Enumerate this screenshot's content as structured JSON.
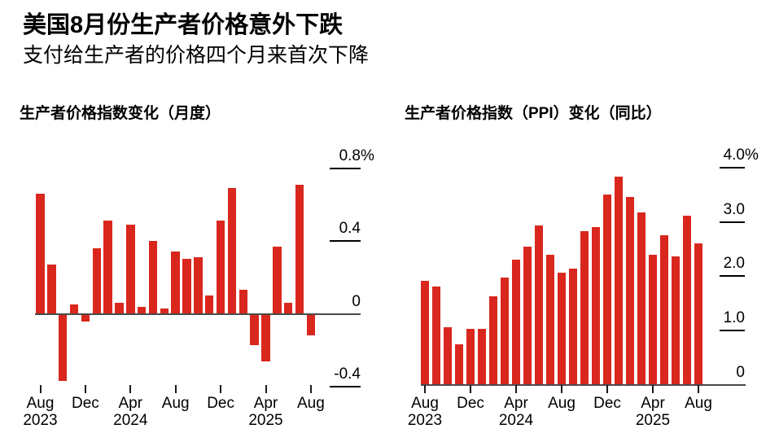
{
  "header": {
    "title": "美国8月份生产者价格意外下跌",
    "subtitle": "支付给生产者的价格四个月来首次下降"
  },
  "accent_color": "#d9271e",
  "chart_data": [
    {
      "type": "bar",
      "title": "生产者价格指数变化（月度）",
      "xlabel": "",
      "ylabel": "percent change month-over-month",
      "unit": "%",
      "ylim": [
        -0.4,
        0.8
      ],
      "grid": false,
      "legend": "none",
      "bar_color": "#d9271e",
      "categories": [
        "Aug 2023",
        "Sep 2023",
        "Oct 2023",
        "Nov 2023",
        "Dec 2023",
        "Jan 2024",
        "Feb 2024",
        "Mar 2024",
        "Apr 2024",
        "May 2024",
        "Jun 2024",
        "Jul 2024",
        "Aug 2024",
        "Sep 2024",
        "Oct 2024",
        "Nov 2024",
        "Dec 2024",
        "Jan 2025",
        "Feb 2025",
        "Mar 2025",
        "Apr 2025",
        "May 2025",
        "Jun 2025",
        "Jul 2025",
        "Aug 2025"
      ],
      "values": [
        0.66,
        0.27,
        -0.37,
        0.05,
        -0.04,
        0.36,
        0.51,
        0.06,
        0.49,
        0.04,
        0.4,
        0.03,
        0.34,
        0.3,
        0.31,
        0.1,
        0.51,
        0.69,
        0.13,
        -0.17,
        -0.26,
        0.37,
        0.06,
        0.71,
        -0.12
      ],
      "y_ticks": [
        {
          "label": "0.8",
          "suffix": "%",
          "value": 0.8
        },
        {
          "label": "0.4",
          "suffix": "",
          "value": 0.4
        },
        {
          "label": "0",
          "suffix": "",
          "value": 0
        },
        {
          "label": "-0.4",
          "suffix": "",
          "value": -0.4
        }
      ],
      "x_ticks": [
        {
          "index": 0,
          "month": "Aug",
          "year": "2023"
        },
        {
          "index": 4,
          "month": "Dec",
          "year": ""
        },
        {
          "index": 8,
          "month": "Apr",
          "year": "2024"
        },
        {
          "index": 12,
          "month": "Aug",
          "year": ""
        },
        {
          "index": 16,
          "month": "Dec",
          "year": ""
        },
        {
          "index": 20,
          "month": "Apr",
          "year": "2025"
        },
        {
          "index": 24,
          "month": "Aug",
          "year": ""
        }
      ]
    },
    {
      "type": "bar",
      "title": "生产者价格指数（PPI）变化（同比）",
      "xlabel": "",
      "ylabel": "percent change year-over-year",
      "unit": "%",
      "ylim": [
        0,
        4.0
      ],
      "grid": false,
      "legend": "none",
      "bar_color": "#d9271e",
      "categories": [
        "Aug 2023",
        "Sep 2023",
        "Oct 2023",
        "Nov 2023",
        "Dec 2023",
        "Jan 2024",
        "Feb 2024",
        "Mar 2024",
        "Apr 2024",
        "May 2024",
        "Jun 2024",
        "Jul 2024",
        "Aug 2024",
        "Sep 2024",
        "Oct 2024",
        "Nov 2024",
        "Dec 2024",
        "Jan 2025",
        "Feb 2025",
        "Mar 2025",
        "Apr 2025",
        "May 2025",
        "Jun 2025",
        "Jul 2025",
        "Aug 2025"
      ],
      "values": [
        1.91,
        1.81,
        1.07,
        0.75,
        1.04,
        1.03,
        1.63,
        1.98,
        2.31,
        2.55,
        2.94,
        2.39,
        2.06,
        2.14,
        2.83,
        2.91,
        3.5,
        3.83,
        3.46,
        3.17,
        2.4,
        2.75,
        2.37,
        3.11,
        2.61
      ],
      "y_ticks": [
        {
          "label": "4.0",
          "suffix": "%",
          "value": 4
        },
        {
          "label": "3.0",
          "suffix": "",
          "value": 3
        },
        {
          "label": "2.0",
          "suffix": "",
          "value": 2
        },
        {
          "label": "1.0",
          "suffix": "",
          "value": 1
        },
        {
          "label": "0",
          "suffix": "",
          "value": 0
        }
      ],
      "x_ticks": [
        {
          "index": 0,
          "month": "Aug",
          "year": "2023"
        },
        {
          "index": 4,
          "month": "Dec",
          "year": ""
        },
        {
          "index": 8,
          "month": "Apr",
          "year": "2024"
        },
        {
          "index": 12,
          "month": "Aug",
          "year": ""
        },
        {
          "index": 16,
          "month": "Dec",
          "year": ""
        },
        {
          "index": 20,
          "month": "Apr",
          "year": "2025"
        },
        {
          "index": 24,
          "month": "Aug",
          "year": ""
        }
      ]
    }
  ]
}
